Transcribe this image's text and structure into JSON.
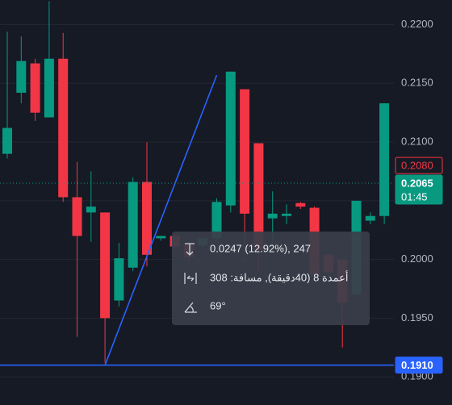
{
  "chart_data": {
    "type": "candlestick",
    "up_color": "#089981",
    "down_color": "#f23645",
    "open": [
      0.209,
      0.2142,
      0.2167,
      0.2121,
      0.2171,
      0.2053,
      0.204,
      0.204,
      0.1965,
      0.1993,
      0.2066,
      0.2018,
      0.202,
      0.2013,
      0.2012,
      0.2018,
      0.2046,
      0.2145,
      0.2099,
      0.2035,
      0.2037,
      0.2048,
      0.2044,
      0.2004,
      0.2,
      0.197,
      0.2033,
      0.2037
    ],
    "high": [
      0.2194,
      0.219,
      0.2171,
      0.222,
      0.2193,
      0.2083,
      0.2075,
      0.204,
      0.2014,
      0.207,
      0.21,
      0.202,
      0.2021,
      0.2015,
      0.2019,
      0.2052,
      0.216,
      0.2145,
      0.2099,
      0.2058,
      0.2047,
      0.2049,
      0.2045,
      0.2006,
      0.2,
      0.205,
      0.204,
      0.2133
    ],
    "low": [
      0.2086,
      0.2133,
      0.2118,
      0.2121,
      0.2049,
      0.1934,
      0.2015,
      0.1912,
      0.196,
      0.199,
      0.1994,
      0.2016,
      0.2008,
      0.1996,
      0.201,
      0.2016,
      0.204,
      0.1998,
      0.199,
      0.201,
      0.203,
      0.2043,
      0.1984,
      0.1985,
      0.1925,
      0.197,
      0.203,
      0.203
    ],
    "close": [
      0.2112,
      0.2169,
      0.2125,
      0.2171,
      0.2053,
      0.202,
      0.2045,
      0.195,
      0.2001,
      0.2066,
      0.2004,
      0.202,
      0.2011,
      0.2002,
      0.2018,
      0.2049,
      0.216,
      0.2039,
      0.2008,
      0.2039,
      0.2039,
      0.2045,
      0.1987,
      0.1989,
      0.1963,
      0.205,
      0.2037,
      0.2133
    ],
    "ylim": [
      0.1876,
      0.2221
    ],
    "yticks": [
      {
        "value": 0.19,
        "label": "0.1900"
      },
      {
        "value": 0.195,
        "label": "0.1950"
      },
      {
        "value": 0.2,
        "label": "0.2000"
      },
      {
        "value": 0.205,
        "label": "0.2050"
      },
      {
        "value": 0.21,
        "label": "0.2100"
      },
      {
        "value": 0.215,
        "label": "0.2150"
      },
      {
        "value": 0.22,
        "label": "0.2200"
      }
    ],
    "grid": true,
    "price_labels": [
      {
        "value": 0.208,
        "label": "0.2080",
        "color": "#f23645",
        "style": "outline"
      },
      {
        "value": 0.2065,
        "label": "0.2065",
        "color": "#089981",
        "style": "fill",
        "countdown": "01:45",
        "dotted_line": true
      },
      {
        "value": 0.191,
        "label": "0.1910",
        "color": "#2962ff",
        "style": "fill",
        "horizontal_line": true
      }
    ],
    "trend_line": {
      "from_index": 7,
      "from_value": 0.191,
      "to_index": 15,
      "to_value": 0.2157,
      "color": "#2962ff"
    },
    "measure": {
      "price_change": "0.0247 (12.92%), 247",
      "bars": "أعمدة 8 (40دقيقة), مسافة: 308",
      "angle": "69°"
    }
  }
}
